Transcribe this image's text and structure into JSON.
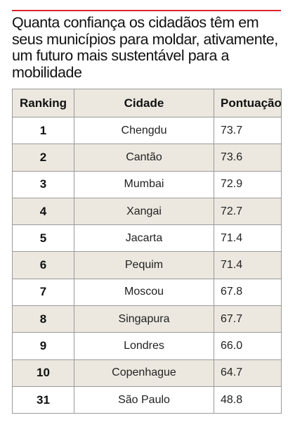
{
  "title": "Quanta confiança os cidadãos têm em seus municípios para moldar, ativamente, um futuro mais sustentável para a mobilidade",
  "headers": {
    "rank": "Ranking",
    "city": "Cidade",
    "score": "Pontuação"
  },
  "rows": [
    {
      "rank": "1",
      "city": "Chengdu",
      "score": "73.7"
    },
    {
      "rank": "2",
      "city": "Cantão",
      "score": "73.6"
    },
    {
      "rank": "3",
      "city": "Mumbai",
      "score": "72.9"
    },
    {
      "rank": "4",
      "city": "Xangai",
      "score": "72.7"
    },
    {
      "rank": "5",
      "city": "Jacarta",
      "score": "71.4"
    },
    {
      "rank": "6",
      "city": "Pequim",
      "score": "71.4"
    },
    {
      "rank": "7",
      "city": "Moscou",
      "score": "67.8"
    },
    {
      "rank": "8",
      "city": "Singapura",
      "score": "67.7"
    },
    {
      "rank": "9",
      "city": "Londres",
      "score": "66.0"
    },
    {
      "rank": "10",
      "city": "Copenhague",
      "score": "64.7"
    },
    {
      "rank": "31",
      "city": "São Paulo",
      "score": "48.8"
    }
  ],
  "colors": {
    "accent_rule": "#d8262b",
    "shaded_row": "#ece8e0",
    "border": "#9a9a9a"
  }
}
